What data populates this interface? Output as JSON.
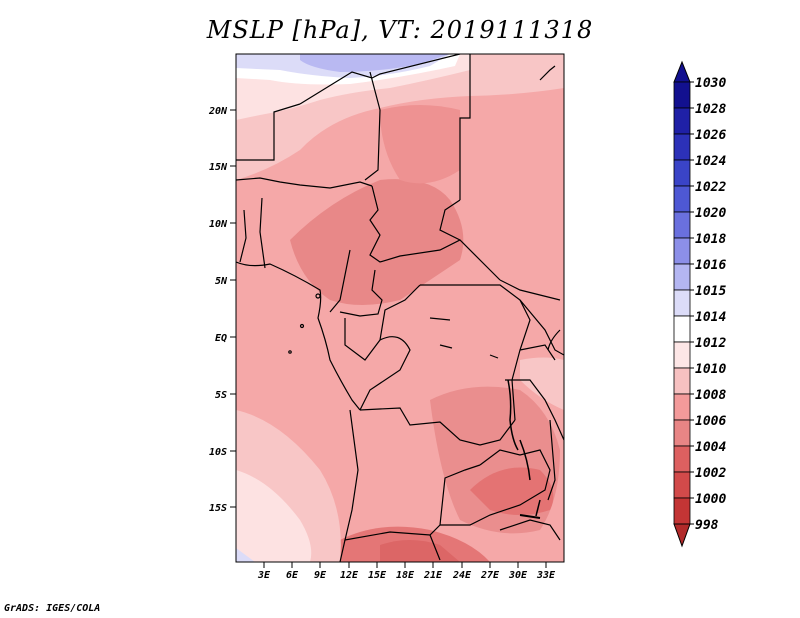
{
  "title": "MSLP [hPa], VT: 2019111318",
  "footer": "GrADS: IGES/COLA",
  "map": {
    "lat_labels": [
      "20N",
      "15N",
      "10N",
      "5N",
      "EQ",
      "5S",
      "10S",
      "15S"
    ],
    "lon_labels": [
      "3E",
      "6E",
      "9E",
      "12E",
      "15E",
      "18E",
      "21E",
      "24E",
      "27E",
      "30E",
      "33E"
    ]
  },
  "colorbar": {
    "levels": [
      "1030",
      "1028",
      "1026",
      "1024",
      "1022",
      "1020",
      "1018",
      "1016",
      "1015",
      "1014",
      "1012",
      "1010",
      "1008",
      "1006",
      "1004",
      "1002",
      "1000",
      "998"
    ],
    "colors": [
      "#12108f",
      "#1f20a6",
      "#2c31b8",
      "#3a44c7",
      "#4e58d4",
      "#6a70de",
      "#8c8fe8",
      "#b4b6f2",
      "#dcdcf8",
      "#ffffff",
      "#fde6e6",
      "#f7c1c1",
      "#f39a9a",
      "#e88585",
      "#dd6060",
      "#d24a4a",
      "#c33535",
      "#b22a2a"
    ]
  }
}
